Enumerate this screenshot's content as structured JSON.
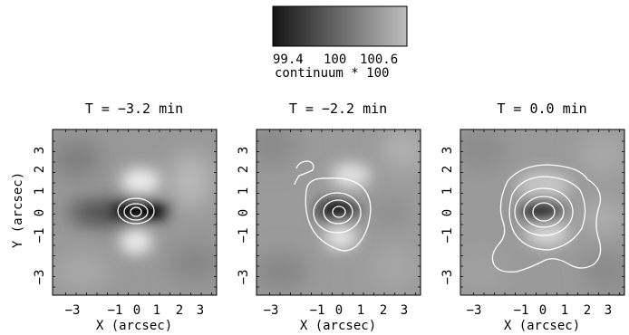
{
  "colorbar": {
    "tick_labels": [
      "99.4",
      "100",
      "100.6"
    ],
    "label": "continuum * 100",
    "colors": {
      "dark": "#141414",
      "light": "#bdbdbd"
    }
  },
  "axes": {
    "xlabel": "X (arcsec)",
    "ylabel": "Y (arcsec)",
    "x_tick_labels": [
      "−3",
      "−1",
      "0",
      "1",
      "2",
      "3"
    ],
    "y_tick_labels": [
      "3",
      "2",
      "1",
      "0",
      "−1",
      "−3"
    ],
    "xlim": [
      -3.9,
      3.9
    ],
    "ylim": [
      -3.9,
      3.9
    ]
  },
  "panels": [
    {
      "title": "T = −3.2 min",
      "contour_levels": 3
    },
    {
      "title": "T = −2.2 min",
      "contour_levels": 4
    },
    {
      "title": "T = 0.0 min",
      "contour_levels": 5
    }
  ],
  "colors": {
    "contour": "#ffffff",
    "axis": "#000000",
    "background": "#ffffff"
  }
}
